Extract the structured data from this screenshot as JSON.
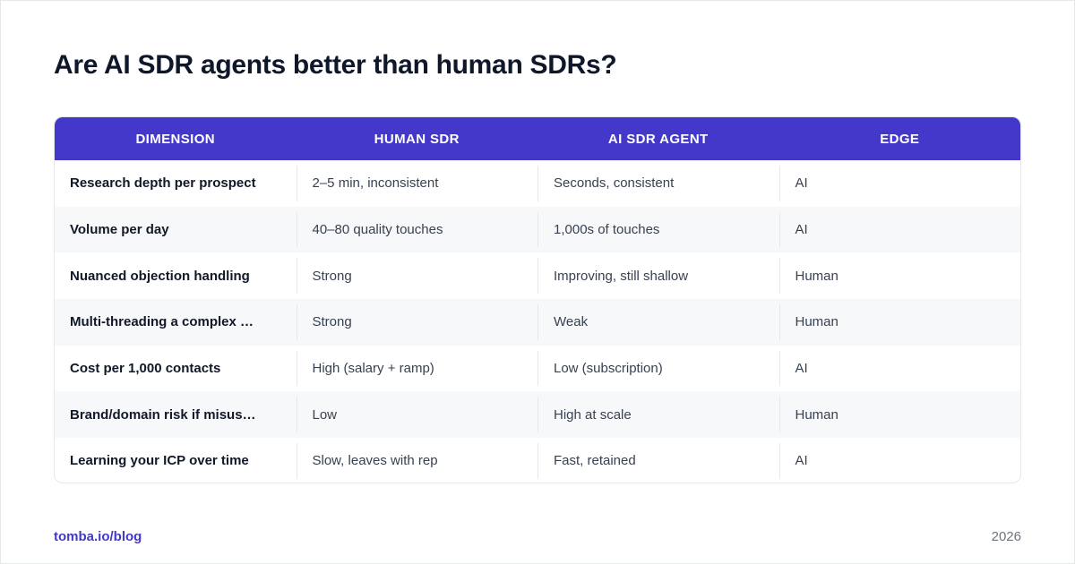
{
  "title": "Are AI SDR agents better than human SDRs?",
  "table": {
    "headers": [
      "DIMENSION",
      "HUMAN SDR",
      "AI SDR AGENT",
      "EDGE"
    ],
    "rows": [
      [
        "Research depth per prospect",
        "2–5 min, inconsistent",
        "Seconds, consistent",
        "AI"
      ],
      [
        "Volume per day",
        "40–80 quality touches",
        "1,000s of touches",
        "AI"
      ],
      [
        "Nuanced objection handling",
        "Strong",
        "Improving, still shallow",
        "Human"
      ],
      [
        "Multi-threading a complex …",
        "Strong",
        "Weak",
        "Human"
      ],
      [
        "Cost per 1,000 contacts",
        "High (salary + ramp)",
        "Low (subscription)",
        "AI"
      ],
      [
        "Brand/domain risk if misus…",
        "Low",
        "High at scale",
        "Human"
      ],
      [
        "Learning your ICP over time",
        "Slow, leaves with rep",
        "Fast, retained",
        "AI"
      ]
    ]
  },
  "footer": {
    "link": "tomba.io/blog",
    "year": "2026"
  },
  "colors": {
    "header_bg": "#4338ca",
    "accent": "#4338ca",
    "stripe": "#f7f8fa"
  }
}
